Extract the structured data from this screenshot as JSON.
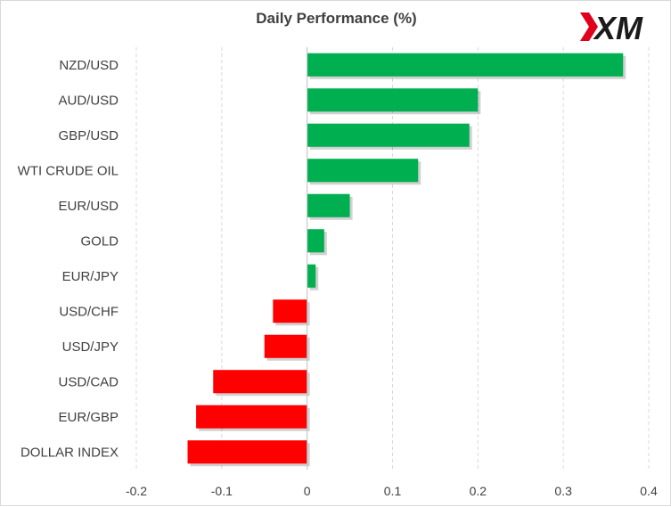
{
  "chart_data": {
    "type": "bar",
    "orientation": "horizontal",
    "title": "Daily Performance  (%)",
    "categories": [
      "NZD/USD",
      "AUD/USD",
      "GBP/USD",
      "WTI CRUDE OIL",
      "EUR/USD",
      "GOLD",
      "EUR/JPY",
      "USD/CHF",
      "USD/JPY",
      "USD/CAD",
      "EUR/GBP",
      "DOLLAR INDEX"
    ],
    "values": [
      0.37,
      0.2,
      0.19,
      0.13,
      0.05,
      0.02,
      0.01,
      -0.04,
      -0.05,
      -0.11,
      -0.13,
      -0.14
    ],
    "xlim": [
      -0.2,
      0.4
    ],
    "xticks": [
      "-0.2",
      "-0.1",
      "0",
      "0.1",
      "0.2",
      "0.3",
      "0.4"
    ],
    "xtick_values": [
      -0.2,
      -0.1,
      0,
      0.1,
      0.2,
      0.3,
      0.4
    ],
    "grid": "vertical",
    "colors": {
      "positive": "#00b050",
      "negative": "#ff0000"
    }
  },
  "brand": {
    "logo_text": "XM",
    "logo_color": "#1a1a1a",
    "accent": "#e0001b"
  }
}
